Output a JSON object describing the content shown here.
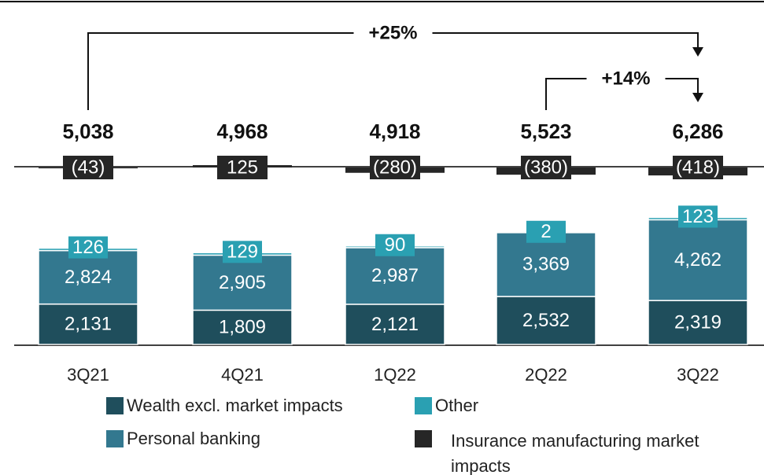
{
  "chart_data": {
    "type": "stacked_bar",
    "categories": [
      "3Q21",
      "4Q21",
      "1Q22",
      "2Q22",
      "3Q22"
    ],
    "totals": [
      5038,
      4968,
      4918,
      5523,
      6286
    ],
    "total_labels": [
      "5,038",
      "4,968",
      "4,918",
      "5,523",
      "6,286"
    ],
    "series": [
      {
        "name": "Wealth excl. market impacts",
        "color": "#1f4e5c",
        "values": [
          2131,
          1809,
          2121,
          2532,
          2319
        ],
        "value_labels": [
          "2,131",
          "1,809",
          "2,121",
          "2,532",
          "2,319"
        ]
      },
      {
        "name": "Personal banking",
        "color": "#33788f",
        "values": [
          2824,
          2905,
          2987,
          3369,
          4262
        ],
        "value_labels": [
          "2,824",
          "2,905",
          "2,987",
          "3,369",
          "4,262"
        ]
      },
      {
        "name": "Other",
        "color": "#2aa0b2",
        "values": [
          126,
          129,
          90,
          2,
          123
        ]
      },
      {
        "name": "Insurance manufacturing market impacts",
        "color": "#262626",
        "values": [
          -43,
          125,
          -280,
          -380,
          -418
        ],
        "value_labels": [
          "(43)",
          "125",
          "(280)",
          "(380)",
          "(418)"
        ]
      }
    ],
    "annotations": [
      {
        "text": "+25%",
        "from": "3Q21",
        "to": "3Q22"
      },
      {
        "text": "+14%",
        "from": "2Q22",
        "to": "3Q22"
      }
    ]
  }
}
